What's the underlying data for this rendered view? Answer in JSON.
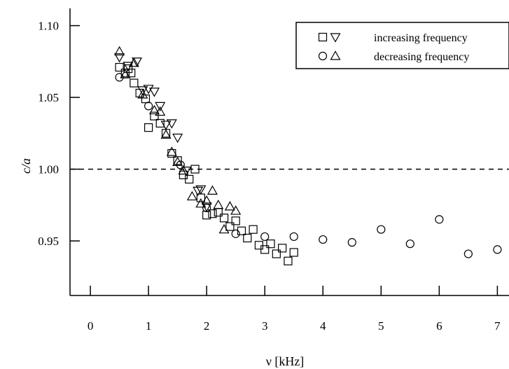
{
  "chart_data": {
    "type": "scatter",
    "xlabel": "ν [kHz]",
    "ylabel": "c/a",
    "xlim": [
      -0.35,
      7.2
    ],
    "ylim": [
      0.912,
      1.112
    ],
    "xticks": [
      "0",
      "1",
      "2",
      "3",
      "4",
      "5",
      "6",
      "7"
    ],
    "yticks": [
      "0.95",
      "1.00",
      "1.05",
      "1.10"
    ],
    "reference_line": {
      "y": 1.0,
      "style": "dashed"
    },
    "legend": {
      "placement": "top-right",
      "entries": [
        {
          "label": "increasing frequency",
          "markers": [
            "square",
            "triangle-down"
          ]
        },
        {
          "label": "decreasing frequency",
          "markers": [
            "circle",
            "triangle-up"
          ]
        }
      ]
    },
    "series": [
      {
        "marker": "square",
        "points": [
          [
            0.5,
            1.071
          ],
          [
            0.6,
            1.067
          ],
          [
            0.65,
            1.07
          ],
          [
            0.7,
            1.067
          ],
          [
            0.75,
            1.06
          ],
          [
            0.85,
            1.053
          ],
          [
            0.95,
            1.049
          ],
          [
            1.0,
            1.029
          ],
          [
            1.1,
            1.037
          ],
          [
            1.2,
            1.032
          ],
          [
            1.3,
            1.025
          ],
          [
            1.4,
            1.011
          ],
          [
            1.5,
            1.006
          ],
          [
            1.6,
            0.996
          ],
          [
            1.7,
            0.993
          ],
          [
            1.8,
            1.0
          ],
          [
            1.9,
            0.98
          ],
          [
            2.0,
            0.968
          ],
          [
            2.1,
            0.969
          ],
          [
            2.2,
            0.97
          ],
          [
            2.3,
            0.966
          ],
          [
            2.4,
            0.96
          ],
          [
            2.5,
            0.964
          ],
          [
            2.6,
            0.957
          ],
          [
            2.7,
            0.952
          ],
          [
            2.8,
            0.958
          ],
          [
            2.9,
            0.947
          ],
          [
            3.0,
            0.944
          ],
          [
            3.1,
            0.948
          ],
          [
            3.2,
            0.941
          ],
          [
            3.3,
            0.945
          ],
          [
            3.4,
            0.936
          ],
          [
            3.5,
            0.942
          ]
        ]
      },
      {
        "marker": "triangle-down",
        "points": [
          [
            0.5,
            1.078
          ],
          [
            0.65,
            1.072
          ],
          [
            0.8,
            1.075
          ],
          [
            0.9,
            1.055
          ],
          [
            1.0,
            1.056
          ],
          [
            1.1,
            1.054
          ],
          [
            1.2,
            1.044
          ],
          [
            1.3,
            1.031
          ],
          [
            1.4,
            1.032
          ],
          [
            1.5,
            1.022
          ],
          [
            1.65,
            0.999
          ],
          [
            1.85,
            0.985
          ],
          [
            1.9,
            0.986
          ],
          [
            2.0,
            0.974
          ]
        ]
      },
      {
        "marker": "circle",
        "points": [
          [
            0.5,
            1.064
          ],
          [
            1.0,
            1.044
          ],
          [
            1.55,
            1.003
          ],
          [
            2.0,
            0.973
          ],
          [
            2.5,
            0.955
          ],
          [
            3.0,
            0.953
          ],
          [
            3.5,
            0.953
          ],
          [
            4.0,
            0.951
          ],
          [
            4.5,
            0.949
          ],
          [
            5.0,
            0.958
          ],
          [
            5.5,
            0.948
          ],
          [
            6.0,
            0.965
          ],
          [
            6.5,
            0.941
          ],
          [
            7.0,
            0.944
          ]
        ]
      },
      {
        "marker": "triangle-up",
        "points": [
          [
            0.5,
            1.082
          ],
          [
            0.6,
            1.066
          ],
          [
            0.75,
            1.074
          ],
          [
            0.9,
            1.052
          ],
          [
            1.1,
            1.041
          ],
          [
            1.2,
            1.04
          ],
          [
            1.3,
            1.024
          ],
          [
            1.4,
            1.012
          ],
          [
            1.5,
            1.005
          ],
          [
            1.6,
            0.999
          ],
          [
            1.75,
            0.981
          ],
          [
            1.9,
            0.976
          ],
          [
            2.0,
            0.978
          ],
          [
            2.1,
            0.985
          ],
          [
            2.2,
            0.975
          ],
          [
            2.3,
            0.958
          ],
          [
            2.4,
            0.974
          ],
          [
            2.5,
            0.971
          ]
        ]
      }
    ]
  }
}
